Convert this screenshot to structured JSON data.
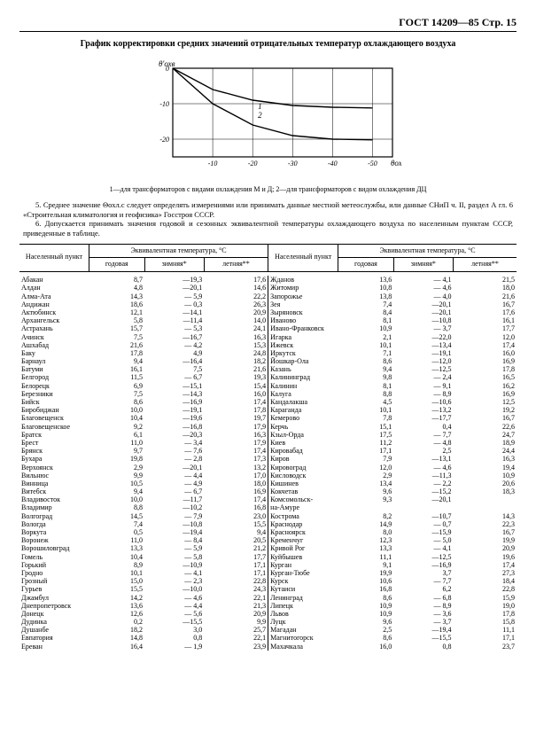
{
  "header": "ГОСТ 14209—85 Стр. 15",
  "title": "График корректировки средних значений отрицательных температур охлаждающего воздуха",
  "chart": {
    "y_label_top": "θ'охв",
    "x_label_right": "θохл",
    "y_ticks": [
      "-20",
      "-10",
      "0"
    ],
    "x_ticks": [
      "-10",
      "-20",
      "-30",
      "-40",
      "-50"
    ],
    "curve_labels": [
      "1",
      "2"
    ],
    "series": [
      {
        "name": "1",
        "points": [
          [
            0,
            0
          ],
          [
            -10,
            -6
          ],
          [
            -20,
            -9
          ],
          [
            -30,
            -10.5
          ],
          [
            -40,
            -11
          ],
          [
            -50,
            -11.2
          ]
        ]
      },
      {
        "name": "2",
        "points": [
          [
            0,
            0
          ],
          [
            -10,
            -10
          ],
          [
            -20,
            -16
          ],
          [
            -30,
            -19
          ],
          [
            -40,
            -20
          ],
          [
            -50,
            -20.2
          ]
        ]
      }
    ],
    "xlim": [
      -55,
      0
    ],
    "ylim": [
      -25,
      0
    ],
    "grid_color": "#000",
    "line_color": "#000",
    "bg": "#fff",
    "line_width": 1.4
  },
  "chart_caption": "1—для трансформаторов с видами охлаждения М и Д; 2—для трансформаторов с видом охлаждения ДЦ",
  "note5": "5. Среднее значение Θохл.с следует определять измерениями или принимать данные местной метеослужбы, или данные СНиП ч. II, раздел А гл. 6 «Строительная климатология и геофизика» Госстроя СССР.",
  "note6": "6. Допускается принимать значения годовой и сезонных эквивалентной температуры охлаждающего воздуха по населенным пунктам СССР, приведенные в таблице.",
  "thead": {
    "np": "Населенный пункт",
    "grp": "Эквивалентная температура, °С",
    "god": "годовая",
    "zim": "зимняя*",
    "let": "летняя**"
  },
  "left": [
    [
      "Абакан",
      "8,7",
      "—19,3",
      "17,6"
    ],
    [
      "Алдан",
      "4,8",
      "—20,1",
      "14,6"
    ],
    [
      "Алма-Ата",
      "14,3",
      "— 5,9",
      "22,2"
    ],
    [
      "Андижан",
      "18,6",
      "— 0,3",
      "26,3"
    ],
    [
      "Актюбинск",
      "12,1",
      "—14,1",
      "20,9"
    ],
    [
      "Архангельск",
      "5,8",
      "—11,4",
      "14,0"
    ],
    [
      "Астрахань",
      "15,7",
      "— 5,3",
      "24,1"
    ],
    [
      "Ачинск",
      "7,5",
      "—16,7",
      "16,3"
    ],
    [
      "Ашхабад",
      "21,6",
      "— 4,2",
      "15,3"
    ],
    [
      "Баку",
      "17,8",
      "4,9",
      "24,8"
    ],
    [
      "Барнаул",
      "9,4",
      "—16,4",
      "18,2"
    ],
    [
      "Батуми",
      "16,1",
      "7,5",
      "21,6"
    ],
    [
      "Белгород",
      "11,5",
      "— 6,7",
      "19,3"
    ],
    [
      "Белорецк",
      "6,9",
      "—15,1",
      "15,4"
    ],
    [
      "Березники",
      "7,5",
      "—14,3",
      "16,0"
    ],
    [
      "Бийск",
      "8,6",
      "—16,9",
      "17,4"
    ],
    [
      "Биробиджан",
      "10,0",
      "—19,1",
      "17,8"
    ],
    [
      "Благовещенск",
      "10,4",
      "—19,6",
      "19,7"
    ],
    [
      "Благовещенское",
      "9,2",
      "—16,8",
      "17,9"
    ],
    [
      "Братск",
      "6,1",
      "—20,3",
      "16,3"
    ],
    [
      "Брест",
      "11,0",
      "— 3,4",
      "17,9"
    ],
    [
      "Брянск",
      "9,7",
      "— 7,6",
      "17,4"
    ],
    [
      "Бухара",
      "19,8",
      "— 2,8",
      "17,3"
    ],
    [
      "Верхоянск",
      "2,9",
      "—20,1",
      "13,2"
    ],
    [
      "Вильнюс",
      "9,9",
      "— 4,4",
      "17,0"
    ],
    [
      "Винница",
      "10,5",
      "— 4,9",
      "18,0"
    ],
    [
      "Витебск",
      "9,4",
      "— 6,7",
      "16,9"
    ],
    [
      "Владивосток",
      "10,0",
      "—11,7",
      "17,4"
    ],
    [
      "Владимир",
      "8,8",
      "—10,2",
      "16,8"
    ],
    [
      "Волгоград",
      "14,5",
      "— 7,9",
      "23,0"
    ],
    [
      "Вологда",
      "7,4",
      "—10,8",
      "15,5"
    ],
    [
      "Воркута",
      "0,5",
      "—19,4",
      "9,4"
    ],
    [
      "Воронеж",
      "11,0",
      "— 8,4",
      "20,5"
    ],
    [
      "Ворошиловград",
      "13,3",
      "— 5,9",
      "21,2"
    ],
    [
      "Гомель",
      "10,4",
      "— 5,8",
      "17,7"
    ],
    [
      "Горький",
      "8,9",
      "—10,9",
      "17,1"
    ],
    [
      "Гродно",
      "10,1",
      "— 4,1",
      "17,1"
    ],
    [
      "Грозный",
      "15,0",
      "— 2,3",
      "22,8"
    ],
    [
      "Гурьев",
      "15,5",
      "—10,0",
      "24,3"
    ],
    [
      "Джамбул",
      "14,2",
      "— 4,6",
      "22,1"
    ],
    [
      "Днепропетровск",
      "13,6",
      "— 4,4",
      "21,3"
    ],
    [
      "Донецк",
      "12,6",
      "— 5,6",
      "20,9"
    ],
    [
      "Дудинка",
      "0,2",
      "—15,5",
      "9,9"
    ],
    [
      "Душанбе",
      "18,2",
      "3,0",
      "25,7"
    ],
    [
      "Евпатория",
      "14,8",
      "0,8",
      "22,1"
    ],
    [
      "Ереван",
      "16,4",
      "— 1,9",
      "23,9"
    ]
  ],
  "right": [
    [
      "Жданов",
      "13,6",
      "— 4,1",
      "21,5"
    ],
    [
      "Житомир",
      "10,8",
      "— 4,6",
      "18,0"
    ],
    [
      "Запорожье",
      "13,8",
      "— 4,0",
      "21,6"
    ],
    [
      "Зея",
      "7,4",
      "—20,1",
      "16,7"
    ],
    [
      "Зыряновск",
      "8,4",
      "—20,1",
      "17,6"
    ],
    [
      "Иваново",
      "8,1",
      "—10,8",
      "16,1"
    ],
    [
      "Ивано-Франковск",
      "10,9",
      "— 3,7",
      "17,7"
    ],
    [
      "Игарка",
      "2,1",
      "—22,0",
      "12,0"
    ],
    [
      "Ижевск",
      "10,1",
      "—13,4",
      "17,4"
    ],
    [
      "Иркутск",
      "7,1",
      "—19,1",
      "16,0"
    ],
    [
      "Йошкар-Ола",
      "8,6",
      "—12,0",
      "16,9"
    ],
    [
      "Казань",
      "9,4",
      "—12,5",
      "17,8"
    ],
    [
      "Калининград",
      "9,8",
      "— 2,4",
      "16,5"
    ],
    [
      "Калинин",
      "8,1",
      "— 9,1",
      "16,2"
    ],
    [
      "Калуга",
      "8,8",
      "— 8,9",
      "16,9"
    ],
    [
      "Кандалакша",
      "4,5",
      "—10,6",
      "12,5"
    ],
    [
      "Караганда",
      "10,1",
      "—13,2",
      "19,2"
    ],
    [
      "Кемерово",
      "7,8",
      "—17,7",
      "16,7"
    ],
    [
      "Керчь",
      "15,1",
      "0,4",
      "22,6"
    ],
    [
      "Кзыл-Орда",
      "17,5",
      "— 7,7",
      "24,7"
    ],
    [
      "Киев",
      "11,2",
      "— 4,8",
      "18,9"
    ],
    [
      "Кировабад",
      "17,1",
      "2,5",
      "24,4"
    ],
    [
      "Киров",
      "7,9",
      "—13,1",
      "16,3"
    ],
    [
      "Кировоград",
      "12,0",
      "— 4,6",
      "19,4"
    ],
    [
      "Кисловодск",
      "2,9",
      "—11,3",
      "10,9"
    ],
    [
      "Кишинев",
      "13,4",
      "— 2,2",
      "20,6"
    ],
    [
      "Кокчетав",
      "9,6",
      "—15,2",
      "18,3"
    ],
    [
      "Комсомольск-",
      "9,3",
      "—20,1",
      ""
    ],
    [
      "на-Амуре",
      "",
      "",
      ""
    ],
    [
      "Кострома",
      "8,2",
      "—10,7",
      "14,3"
    ],
    [
      "Краснодар",
      "14,9",
      "— 0,7",
      "22,3"
    ],
    [
      "Красноярск",
      "8,0",
      "—15,9",
      "16,7"
    ],
    [
      "Кременчуг",
      "12,3",
      "— 5,0",
      "19,9"
    ],
    [
      "Кривой Рог",
      "13,3",
      "— 4,1",
      "20,9"
    ],
    [
      "Куйбышев",
      "11,1",
      "—12,5",
      "19,6"
    ],
    [
      "Курган",
      "9,1",
      "—16,9",
      "17,4"
    ],
    [
      "Курган-Тюбе",
      "19,9",
      "3,7",
      "27,3"
    ],
    [
      "Курск",
      "10,6",
      "— 7,7",
      "18,4"
    ],
    [
      "Кутаиси",
      "16,8",
      "6,2",
      "22,8"
    ],
    [
      "Ленинград",
      "8,6",
      "— 6,8",
      "15,9"
    ],
    [
      "Липецк",
      "10,9",
      "— 8,9",
      "19,0"
    ],
    [
      "Львов",
      "10,9",
      "— 3,6",
      "17,8"
    ],
    [
      "Луцк",
      "9,6",
      "— 3,7",
      "15,8"
    ],
    [
      "Магадан",
      "2,5",
      "—19,4",
      "11,1"
    ],
    [
      "Магнитогорск",
      "8,6",
      "—15,5",
      "17,1"
    ],
    [
      "Махачкала",
      "16,0",
      "0,8",
      "23,7"
    ]
  ]
}
